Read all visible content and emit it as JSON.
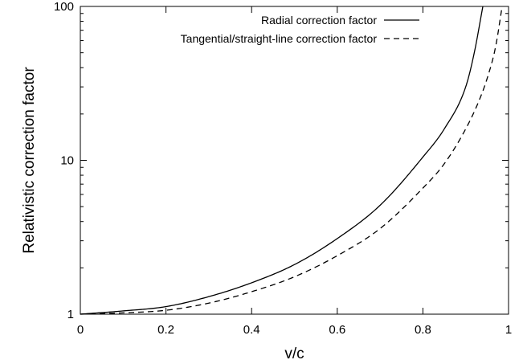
{
  "chart_data": {
    "type": "line",
    "title": "",
    "xlabel": "v/c",
    "ylabel": "Relativistic correction factor",
    "xlim": [
      0,
      1
    ],
    "ylim": [
      1,
      100
    ],
    "y_scale": "log",
    "grid": false,
    "legend_position": "top-right",
    "x_ticks": [
      "0",
      "0.2",
      "0.4",
      "0.6",
      "0.8",
      "1"
    ],
    "y_ticks": [
      "1",
      "10",
      "100"
    ],
    "series": [
      {
        "name": "Radial correction factor",
        "style": "solid",
        "color": "#000000",
        "x": [
          0.0,
          0.1,
          0.2,
          0.3,
          0.4,
          0.5,
          0.6,
          0.7,
          0.8,
          0.85,
          0.9,
          0.92,
          0.94
        ],
        "y": [
          1.0,
          1.05,
          1.12,
          1.3,
          1.6,
          2.1,
          3.1,
          5.1,
          10.5,
          16.0,
          30.0,
          50.0,
          100.0
        ]
      },
      {
        "name": "Tangential/straight-line correction factor",
        "style": "dashed",
        "color": "#000000",
        "x": [
          0.0,
          0.1,
          0.2,
          0.3,
          0.4,
          0.5,
          0.6,
          0.7,
          0.8,
          0.85,
          0.9,
          0.93,
          0.95,
          0.97,
          0.985
        ],
        "y": [
          1.0,
          1.02,
          1.06,
          1.18,
          1.4,
          1.75,
          2.4,
          3.6,
          6.6,
          9.5,
          16.0,
          24.0,
          34.0,
          55.0,
          100.0
        ]
      }
    ]
  }
}
